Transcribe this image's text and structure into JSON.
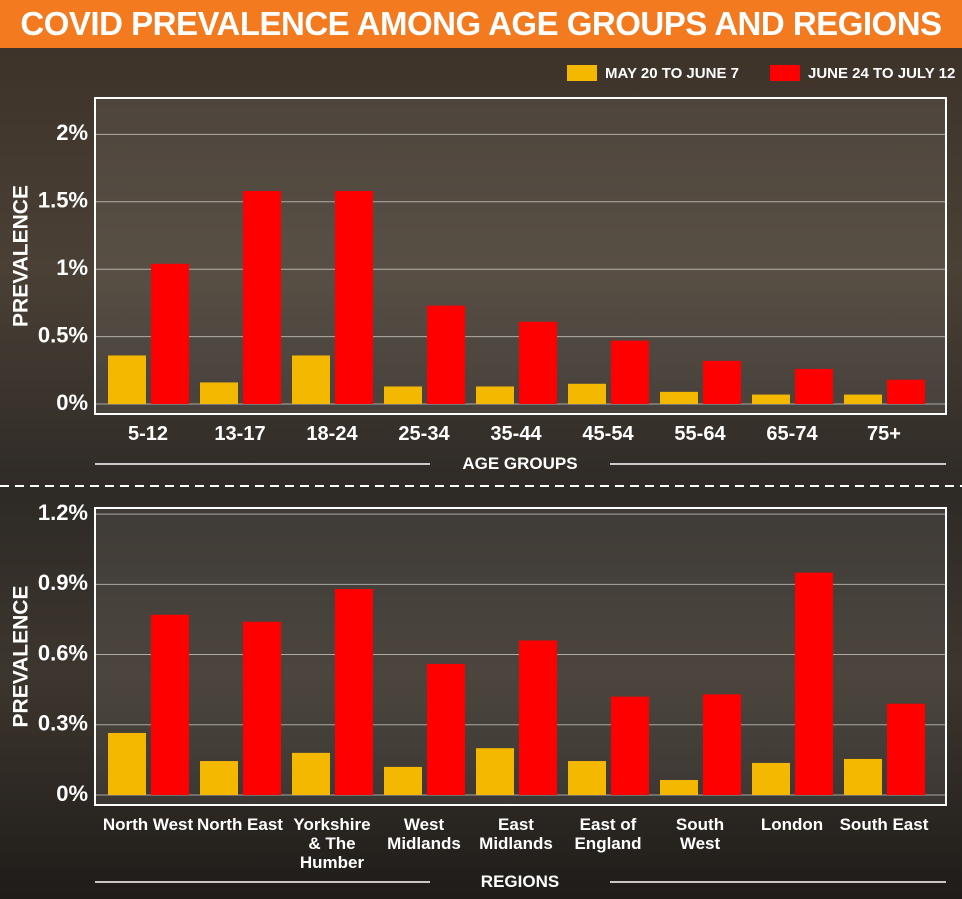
{
  "title": "COVID PREVALENCE AMONG AGE GROUPS AND REGIONS",
  "chart_data": [
    {
      "type": "bar",
      "categories": [
        "5-12",
        "13-17",
        "18-24",
        "25-34",
        "35-44",
        "45-54",
        "55-64",
        "65-74",
        "75+"
      ],
      "series": [
        {
          "name": "MAY 20 TO JUNE 7",
          "color": "#f5b800",
          "values": [
            0.36,
            0.16,
            0.36,
            0.13,
            0.13,
            0.15,
            0.09,
            0.07,
            0.07
          ]
        },
        {
          "name": "JUNE 24 TO JULY 12",
          "color": "#ff0000",
          "values": [
            1.04,
            1.58,
            1.58,
            0.73,
            0.61,
            0.47,
            0.32,
            0.26,
            0.18
          ]
        }
      ],
      "ylabel": "PREVALENCE",
      "xlabel": "AGE GROUPS",
      "ylim": [
        0,
        2.27
      ],
      "yticks": [
        {
          "value": 0,
          "label": "0%"
        },
        {
          "value": 0.5,
          "label": "0.5%"
        },
        {
          "value": 1,
          "label": "1%"
        },
        {
          "value": 1.5,
          "label": "1.5%"
        },
        {
          "value": 2,
          "label": "2%"
        }
      ],
      "grid": true
    },
    {
      "type": "bar",
      "categories": [
        "North West",
        "North East",
        "Yorkshire & The Humber",
        "West Midlands",
        "East Midlands",
        "East of England",
        "South West",
        "London",
        "South East"
      ],
      "series": [
        {
          "color": "#f5b800",
          "values": [
            0.265,
            0.145,
            0.18,
            0.12,
            0.2,
            0.145,
            0.064,
            0.137,
            0.154
          ]
        },
        {
          "color": "#ff0000",
          "values": [
            0.77,
            0.74,
            0.88,
            0.56,
            0.66,
            0.42,
            0.43,
            0.95,
            0.39
          ]
        }
      ],
      "ylabel": "PREVALENCE",
      "xlabel": "REGIONS",
      "ylim": [
        0,
        1.226
      ],
      "yticks": [
        {
          "value": 0,
          "label": "0%"
        },
        {
          "value": 0.3,
          "label": "0.3%"
        },
        {
          "value": 0.6,
          "label": "0.6%"
        },
        {
          "value": 0.9,
          "label": "0.9%"
        },
        {
          "value": 1.2,
          "label": "1.2%"
        }
      ],
      "grid": true
    }
  ]
}
